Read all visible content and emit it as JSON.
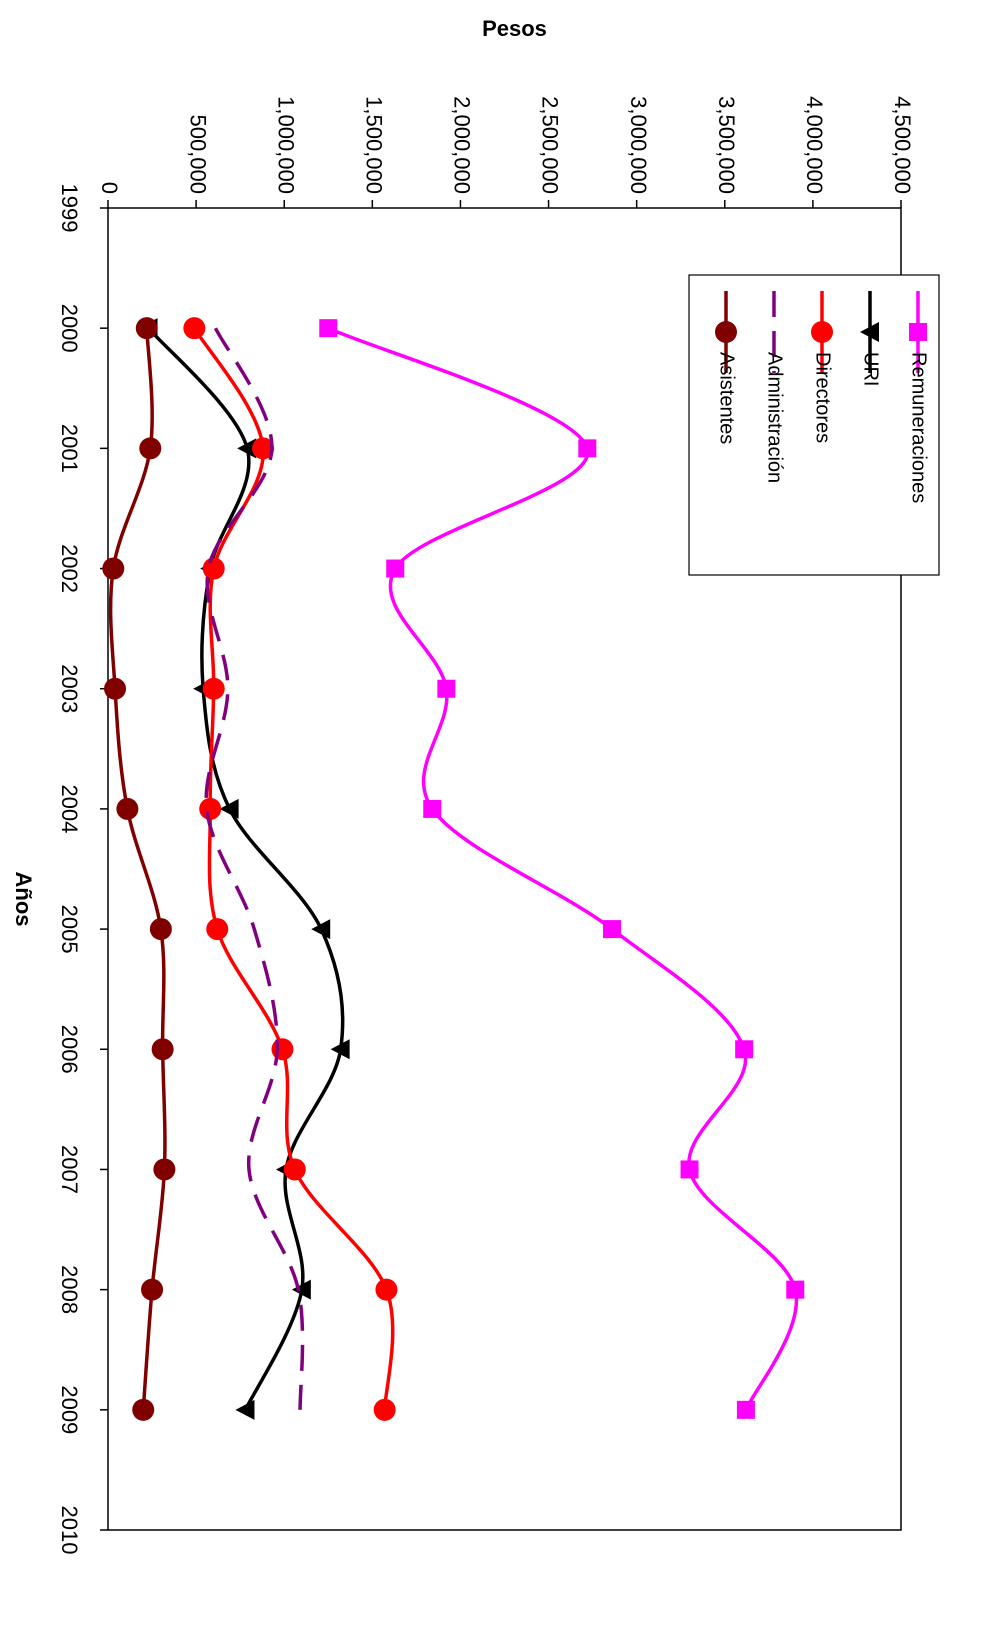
{
  "chart_data": {
    "type": "line",
    "xlabel": "Años",
    "ylabel": "Pesos",
    "x": [
      2000,
      2001,
      2002,
      2003,
      2004,
      2005,
      2006,
      2007,
      2008,
      2009
    ],
    "xlim": [
      1999,
      2010
    ],
    "x_ticks": [
      "1999",
      "2000",
      "2001",
      "2002",
      "2003",
      "2004",
      "2005",
      "2006",
      "2007",
      "2008",
      "2009",
      "2010"
    ],
    "ylim": [
      0,
      4500000
    ],
    "y_ticks": [
      "0",
      "500,000",
      "1,000,000",
      "1,500,000",
      "2,000,000",
      "2,500,000",
      "3,000,000",
      "3,500,000",
      "4,000,000",
      "4,500,000"
    ],
    "grid": false,
    "legend_position": "top-right",
    "series": [
      {
        "name": "Remuneraciones",
        "color": "#ff00ff",
        "marker": "square",
        "dash": "solid",
        "values": [
          1250000,
          2720000,
          1630000,
          1920000,
          1840000,
          2860000,
          3610000,
          3300000,
          3900000,
          3620000
        ]
      },
      {
        "name": "URI",
        "color": "#000000",
        "marker": "triangle",
        "dash": "solid",
        "values": [
          230000,
          790000,
          580000,
          540000,
          690000,
          1210000,
          1320000,
          1010000,
          1100000,
          780000
        ]
      },
      {
        "name": "Directores",
        "color": "#ff0000",
        "marker": "circle",
        "dash": "solid",
        "values": [
          490000,
          880000,
          600000,
          600000,
          580000,
          620000,
          990000,
          1060000,
          1580000,
          1570000
        ]
      },
      {
        "name": "Administración",
        "color": "#800080",
        "marker": "none",
        "dash": "dashed",
        "values": [
          610000,
          930000,
          570000,
          680000,
          560000,
          830000,
          960000,
          800000,
          1080000,
          1090000
        ]
      },
      {
        "name": "Asistentes",
        "color": "#800000",
        "marker": "circle",
        "dash": "solid",
        "values": [
          220000,
          240000,
          30000,
          40000,
          110000,
          300000,
          310000,
          320000,
          250000,
          200000
        ]
      }
    ]
  }
}
